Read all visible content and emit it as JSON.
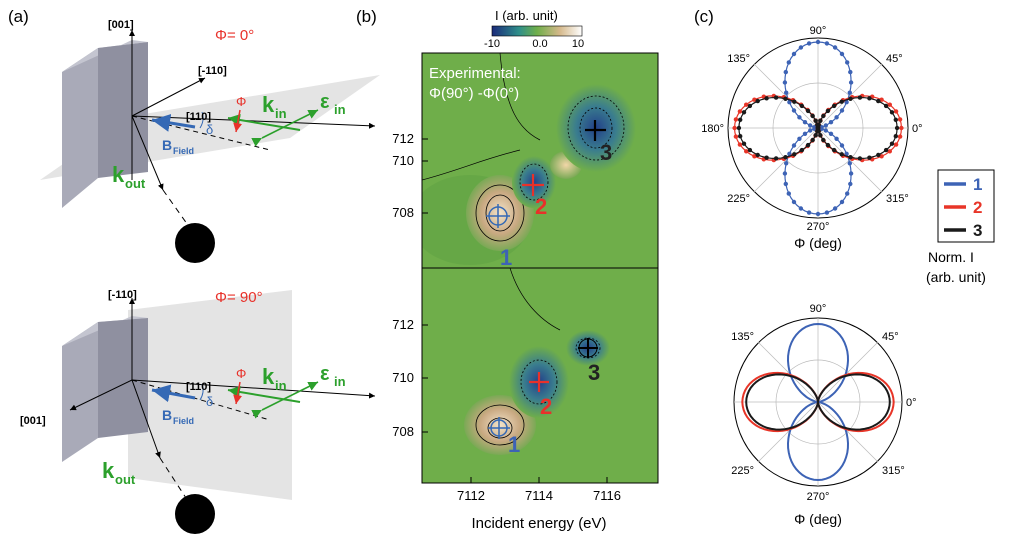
{
  "panels": {
    "a": {
      "letter": "(a)",
      "top": {
        "phi_label": "Φ= 0°",
        "axis_001": "[001]",
        "axis_m110": "[-110]",
        "axis_110": "[110]",
        "phi_symbol": "Φ",
        "delta_symbol": "δ",
        "k_in": "k",
        "k_in_sub": "in",
        "eps_in": "ε",
        "eps_in_sub": "in",
        "b_field": "B",
        "b_field_sub": "Field",
        "k_out": "k",
        "k_out_sub": "out"
      },
      "bottom": {
        "phi_label": "Φ= 90°",
        "axis_m110": "[-110]",
        "axis_001": "[001]",
        "axis_110": "[110]",
        "phi_symbol": "Φ",
        "delta_symbol": "δ",
        "k_in": "k",
        "k_in_sub": "in",
        "eps_in": "ε",
        "eps_in_sub": "in",
        "b_field": "B",
        "b_field_sub": "Field",
        "k_out": "k",
        "k_out_sub": "out"
      }
    },
    "b": {
      "letter": "(b)",
      "colorbar_title": "I (arb. unit)",
      "colorbar_ticks": [
        "-10",
        "0.0",
        "10"
      ],
      "annotation_line1": "Experimental:",
      "annotation_line2": "Φ(90°) -Φ(0°)",
      "y_ticks_top": [
        "712",
        "710",
        "708"
      ],
      "y_ticks_bottom": [
        "712",
        "710",
        "708"
      ],
      "x_ticks": [
        "7112",
        "7114",
        "7116"
      ],
      "xlabel": "Incident energy (eV)",
      "markers": [
        "1",
        "2",
        "3"
      ]
    },
    "c": {
      "letter": "(c)",
      "angle_labels": [
        "90°",
        "45°",
        "0°",
        "315°",
        "270°",
        "225°",
        "180°",
        "135°"
      ],
      "xlabel_top": "Φ (deg)",
      "xlabel_bottom": "Φ (deg)",
      "legend": [
        {
          "label": "1",
          "color": "#3d63b5"
        },
        {
          "label": "2",
          "color": "#e83528"
        },
        {
          "label": "3",
          "color": "#1a1a1a"
        }
      ],
      "legend_caption_line1": "Norm. I",
      "legend_caption_line2": "(arb. unit)"
    }
  },
  "colors": {
    "map_green": "#6fae4a",
    "peak": "#d8b99a",
    "series1": "#3d63b5",
    "series2": "#e83528",
    "series3": "#1a1a1a",
    "k_arrow": "#2ca02c",
    "phi_red": "#e8312a"
  }
}
